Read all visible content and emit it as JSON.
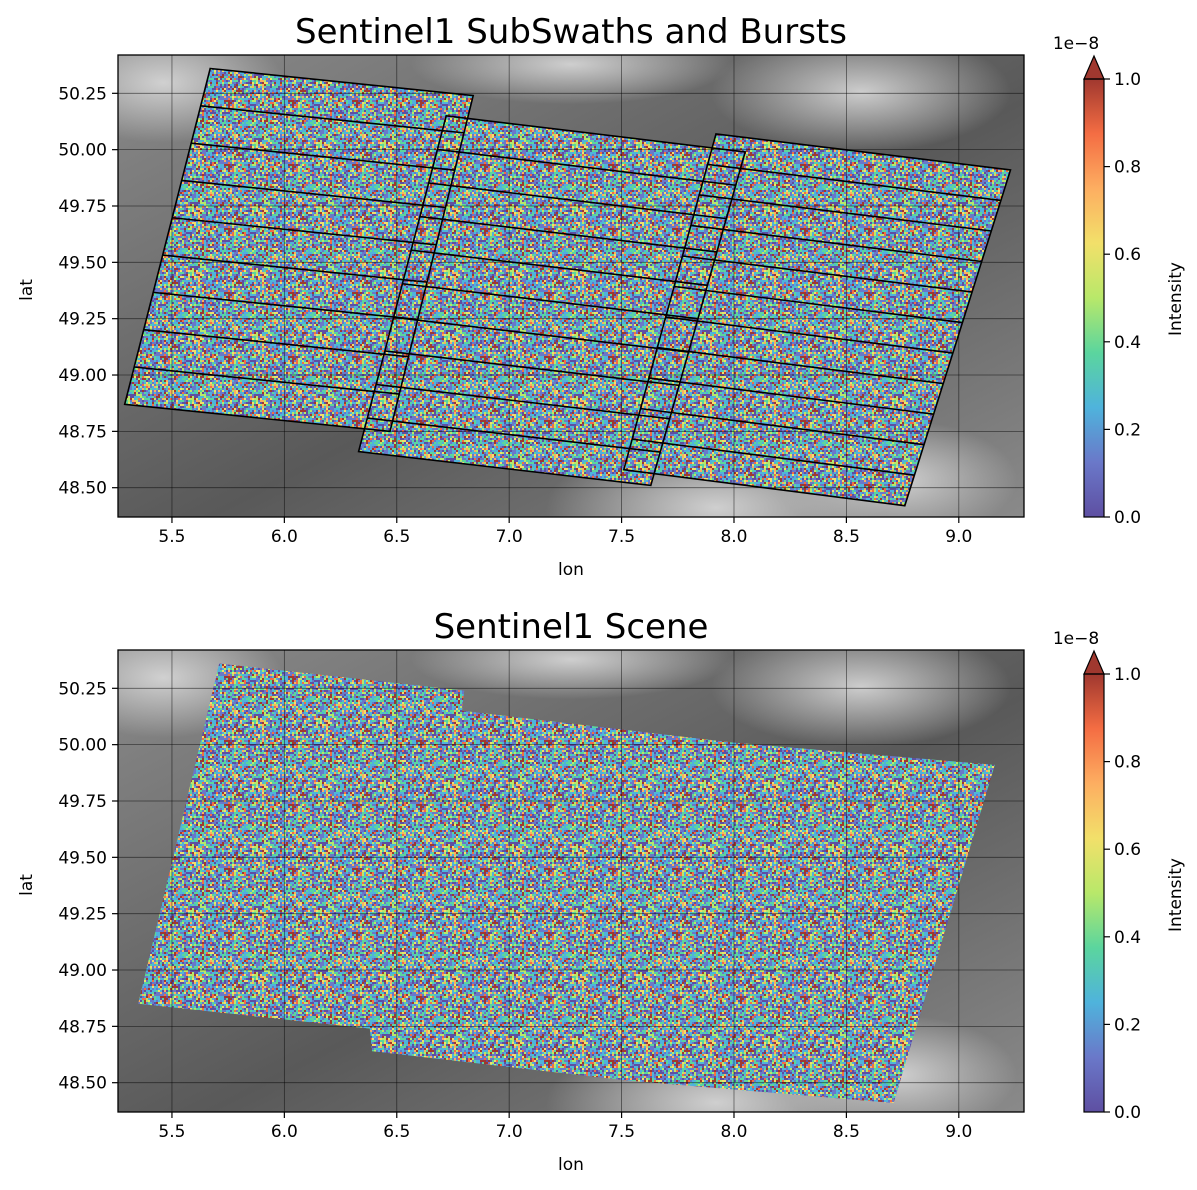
{
  "colors": {
    "frame": "#000000",
    "grid": "#000000",
    "burst_outline": "#000000",
    "colormap_stops": [
      "#5e4fa2",
      "#6a78c9",
      "#4fb3dc",
      "#5bd59e",
      "#b8e86a",
      "#f2e06a",
      "#fdae61",
      "#f46d43",
      "#a0382f"
    ],
    "dem_stops": [
      "#595959",
      "#8a8a8a",
      "#d9d9d9"
    ]
  },
  "chart_data": [
    {
      "type": "heatmap",
      "title": "Sentinel1 SubSwaths and Bursts",
      "xlabel": "lon",
      "ylabel": "lat",
      "xlim": [
        5.26,
        9.29
      ],
      "ylim": [
        48.37,
        50.42
      ],
      "x_ticks": [
        {
          "value": 5.5,
          "label": "5.5"
        },
        {
          "value": 6.0,
          "label": "6.0"
        },
        {
          "value": 6.5,
          "label": "6.5"
        },
        {
          "value": 7.0,
          "label": "7.0"
        },
        {
          "value": 7.5,
          "label": "7.5"
        },
        {
          "value": 8.0,
          "label": "8.0"
        },
        {
          "value": 8.5,
          "label": "8.5"
        },
        {
          "value": 9.0,
          "label": "9.0"
        }
      ],
      "y_ticks": [
        {
          "value": 48.5,
          "label": "48.50"
        },
        {
          "value": 48.75,
          "label": "48.75"
        },
        {
          "value": 49.0,
          "label": "49.00"
        },
        {
          "value": 49.25,
          "label": "49.25"
        },
        {
          "value": 49.5,
          "label": "49.50"
        },
        {
          "value": 49.75,
          "label": "49.75"
        },
        {
          "value": 50.0,
          "label": "50.00"
        },
        {
          "value": 50.25,
          "label": "50.25"
        }
      ],
      "grid": true,
      "background": "DEM elevation (grayscale)",
      "subswaths": [
        {
          "corners": [
            [
              5.67,
              50.36
            ],
            [
              6.84,
              50.24
            ],
            [
              6.47,
              48.75
            ],
            [
              5.29,
              48.87
            ]
          ],
          "burst_lines": 8
        },
        {
          "corners": [
            [
              6.72,
              50.15
            ],
            [
              8.05,
              49.99
            ],
            [
              7.63,
              48.51
            ],
            [
              6.33,
              48.66
            ]
          ],
          "burst_lines": 9
        },
        {
          "corners": [
            [
              7.92,
              50.07
            ],
            [
              9.23,
              49.91
            ],
            [
              8.76,
              48.42
            ],
            [
              7.51,
              48.58
            ]
          ],
          "burst_lines": 10
        }
      ],
      "colorbar": {
        "label": "Intensity",
        "scale_label": "1e−8",
        "range": [
          0.0,
          1.0
        ],
        "extend": "max",
        "ticks": [
          {
            "value": 0.0,
            "label": "0.0"
          },
          {
            "value": 0.2,
            "label": "0.2"
          },
          {
            "value": 0.4,
            "label": "0.4"
          },
          {
            "value": 0.6,
            "label": "0.6"
          },
          {
            "value": 0.8,
            "label": "0.8"
          },
          {
            "value": 1.0,
            "label": "1.0"
          }
        ]
      }
    },
    {
      "type": "heatmap",
      "title": "Sentinel1 Scene",
      "xlabel": "lon",
      "ylabel": "lat",
      "xlim": [
        5.26,
        9.29
      ],
      "ylim": [
        48.37,
        50.42
      ],
      "x_ticks": [
        {
          "value": 5.5,
          "label": "5.5"
        },
        {
          "value": 6.0,
          "label": "6.0"
        },
        {
          "value": 6.5,
          "label": "6.5"
        },
        {
          "value": 7.0,
          "label": "7.0"
        },
        {
          "value": 7.5,
          "label": "7.5"
        },
        {
          "value": 8.0,
          "label": "8.0"
        },
        {
          "value": 8.5,
          "label": "8.5"
        },
        {
          "value": 9.0,
          "label": "9.0"
        }
      ],
      "y_ticks": [
        {
          "value": 48.5,
          "label": "48.50"
        },
        {
          "value": 48.75,
          "label": "48.75"
        },
        {
          "value": 49.0,
          "label": "49.00"
        },
        {
          "value": 49.25,
          "label": "49.25"
        },
        {
          "value": 49.5,
          "label": "49.50"
        },
        {
          "value": 49.75,
          "label": "49.75"
        },
        {
          "value": 50.0,
          "label": "50.00"
        },
        {
          "value": 50.25,
          "label": "50.25"
        }
      ],
      "grid": true,
      "background": "DEM elevation (grayscale)",
      "scene_outline": [
        [
          5.71,
          50.36
        ],
        [
          6.8,
          50.24
        ],
        [
          6.79,
          50.15
        ],
        [
          7.99,
          50.01
        ],
        [
          9.16,
          49.91
        ],
        [
          8.71,
          48.41
        ],
        [
          7.52,
          48.51
        ],
        [
          6.39,
          48.64
        ],
        [
          6.38,
          48.74
        ],
        [
          5.35,
          48.85
        ]
      ],
      "colorbar": {
        "label": "Intensity",
        "scale_label": "1e−8",
        "range": [
          0.0,
          1.0
        ],
        "extend": "max",
        "ticks": [
          {
            "value": 0.0,
            "label": "0.0"
          },
          {
            "value": 0.2,
            "label": "0.2"
          },
          {
            "value": 0.4,
            "label": "0.4"
          },
          {
            "value": 0.6,
            "label": "0.6"
          },
          {
            "value": 0.8,
            "label": "0.8"
          },
          {
            "value": 1.0,
            "label": "1.0"
          }
        ]
      }
    }
  ]
}
